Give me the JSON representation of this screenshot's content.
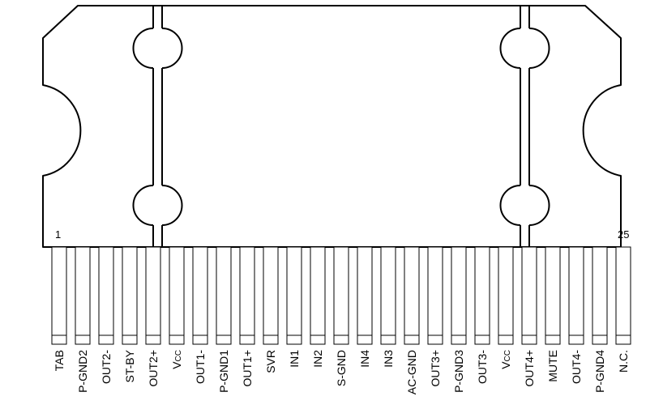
{
  "package": {
    "first_pin_marker": "1",
    "last_pin_marker": "25",
    "pins": [
      "TAB",
      "P-GND2",
      "OUT2-",
      "ST-BY",
      "OUT2+",
      "VCC",
      "OUT1-",
      "P-GND1",
      "OUT1+",
      "SVR",
      "IN1",
      "IN2",
      "S-GND",
      "IN4",
      "IN3",
      "AC-GND",
      "OUT3+",
      "P-GND3",
      "OUT3-",
      "VCC",
      "OUT4+",
      "MUTE",
      "OUT4-",
      "P-GND4",
      "N.C."
    ]
  }
}
